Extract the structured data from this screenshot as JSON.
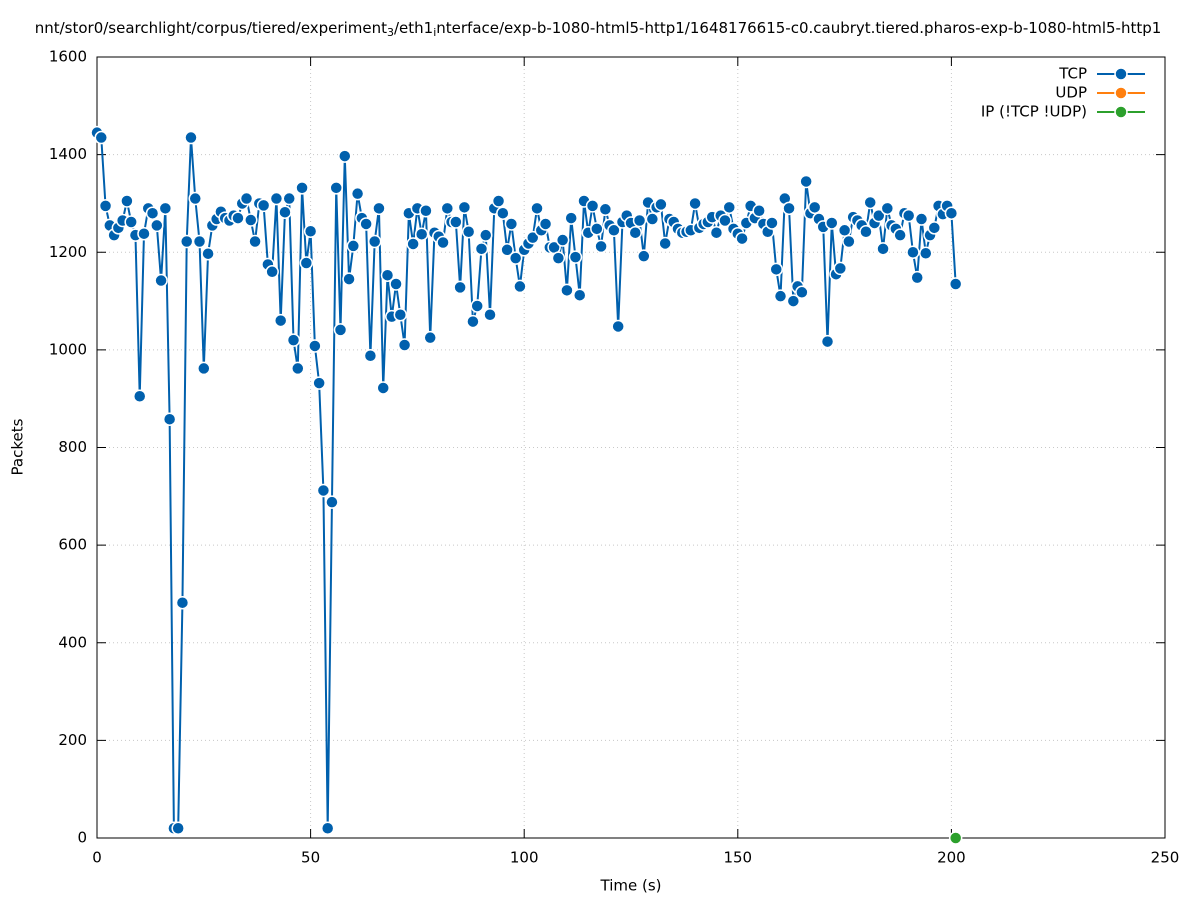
{
  "chart_data": {
    "type": "line",
    "title": [
      "nnt/stor0/searchlight/corpus/tiered/experiment",
      "3",
      "/eth1",
      "i",
      "nterface/exp-b-1080-html5-http1/1648176615-c0.caubryt.tiered.pharos-exp-b-1080-html5-http1"
    ],
    "xlabel": "Time (s)",
    "ylabel": "Packets",
    "xlim": [
      0,
      250
    ],
    "xticks": [
      0,
      50,
      100,
      150,
      200,
      250
    ],
    "ylim": [
      0,
      1600
    ],
    "yticks": [
      0,
      200,
      400,
      600,
      800,
      1000,
      1200,
      1400,
      1600
    ],
    "grid": true,
    "legend": "top-right",
    "series": [
      {
        "name": "TCP",
        "color": "#0060ad",
        "x": [
          0,
          1,
          2,
          3,
          4,
          5,
          6,
          7,
          8,
          9,
          10,
          11,
          12,
          13,
          14,
          15,
          16,
          17,
          18,
          19,
          20,
          21,
          22,
          23,
          24,
          25,
          26,
          27,
          28,
          29,
          30,
          31,
          32,
          33,
          34,
          35,
          36,
          37,
          38,
          39,
          40,
          41,
          42,
          43,
          44,
          45,
          46,
          47,
          48,
          49,
          50,
          51,
          52,
          53,
          54,
          55,
          56,
          57,
          58,
          59,
          60,
          61,
          62,
          63,
          64,
          65,
          66,
          67,
          68,
          69,
          70,
          71,
          72,
          73,
          74,
          75,
          76,
          77,
          78,
          79,
          80,
          81,
          82,
          83,
          84,
          85,
          86,
          87,
          88,
          89,
          90,
          91,
          92,
          93,
          94,
          95,
          96,
          97,
          98,
          99,
          100,
          101,
          102,
          103,
          104,
          105,
          106,
          107,
          108,
          109,
          110,
          111,
          112,
          113,
          114,
          115,
          116,
          117,
          118,
          119,
          120,
          121,
          122,
          123,
          124,
          125,
          126,
          127,
          128,
          129,
          130,
          131,
          132,
          133,
          134,
          135,
          136,
          137,
          138,
          139,
          140,
          141,
          142,
          143,
          144,
          145,
          146,
          147,
          148,
          149,
          150,
          151,
          152,
          153,
          154,
          155,
          156,
          157,
          158,
          159,
          160,
          161,
          162,
          163,
          164,
          165,
          166,
          167,
          168,
          169,
          170,
          171,
          172,
          173,
          174,
          175,
          176,
          177,
          178,
          179,
          180,
          181,
          182,
          183,
          184,
          185,
          186,
          187,
          188,
          189,
          190,
          191,
          192,
          193,
          194,
          195,
          196,
          197,
          198,
          199,
          200,
          201
        ],
        "values": [
          1445,
          1435,
          1295,
          1255,
          1235,
          1250,
          1265,
          1305,
          1262,
          1235,
          905,
          1238,
          1290,
          1280,
          1255,
          1142,
          1290,
          858,
          20,
          20,
          482,
          1222,
          1435,
          1310,
          1222,
          962,
          1197,
          1255,
          1268,
          1283,
          1270,
          1265,
          1275,
          1270,
          1300,
          1310,
          1266,
          1222,
          1300,
          1296,
          1175,
          1160,
          1310,
          1060,
          1282,
          1310,
          1020,
          962,
          1332,
          1178,
          1243,
          1008,
          932,
          712,
          20,
          688,
          1332,
          1041,
          1397,
          1145,
          1213,
          1320,
          1270,
          1258,
          988,
          1222,
          1290,
          922,
          1153,
          1068,
          1135,
          1072,
          1010,
          1280,
          1217,
          1290,
          1237,
          1285,
          1025,
          1240,
          1232,
          1220,
          1290,
          1262,
          1262,
          1128,
          1292,
          1242,
          1058,
          1090,
          1207,
          1235,
          1072,
          1290,
          1305,
          1280,
          1205,
          1258,
          1188,
          1130,
          1205,
          1218,
          1230,
          1290,
          1245,
          1258,
          1210,
          1210,
          1188,
          1225,
          1122,
          1270,
          1190,
          1112,
          1305,
          1240,
          1295,
          1248,
          1212,
          1288,
          1255,
          1245,
          1048,
          1262,
          1275,
          1260,
          1240,
          1265,
          1192,
          1302,
          1268,
          1292,
          1298,
          1218,
          1268,
          1262,
          1248,
          1240,
          1242,
          1245,
          1300,
          1250,
          1258,
          1262,
          1272,
          1240,
          1275,
          1265,
          1292,
          1248,
          1238,
          1228,
          1260,
          1295,
          1270,
          1285,
          1258,
          1242,
          1260,
          1165,
          1110,
          1310,
          1290,
          1100,
          1130,
          1118,
          1345,
          1280,
          1292,
          1268,
          1252,
          1017,
          1260,
          1155,
          1167,
          1245,
          1222,
          1272,
          1265,
          1255,
          1242,
          1302,
          1260,
          1275,
          1207,
          1290,
          1255,
          1248,
          1235,
          1280,
          1275,
          1200,
          1148,
          1268,
          1198,
          1235,
          1250,
          1295,
          1278,
          1295,
          1280,
          1135
        ]
      },
      {
        "name": "UDP",
        "color": "#ff7f0e",
        "x": [],
        "values": []
      },
      {
        "name": "IP (!TCP  !UDP)",
        "color": "#2ca02c",
        "x": [
          201
        ],
        "values": [
          0
        ]
      }
    ]
  }
}
